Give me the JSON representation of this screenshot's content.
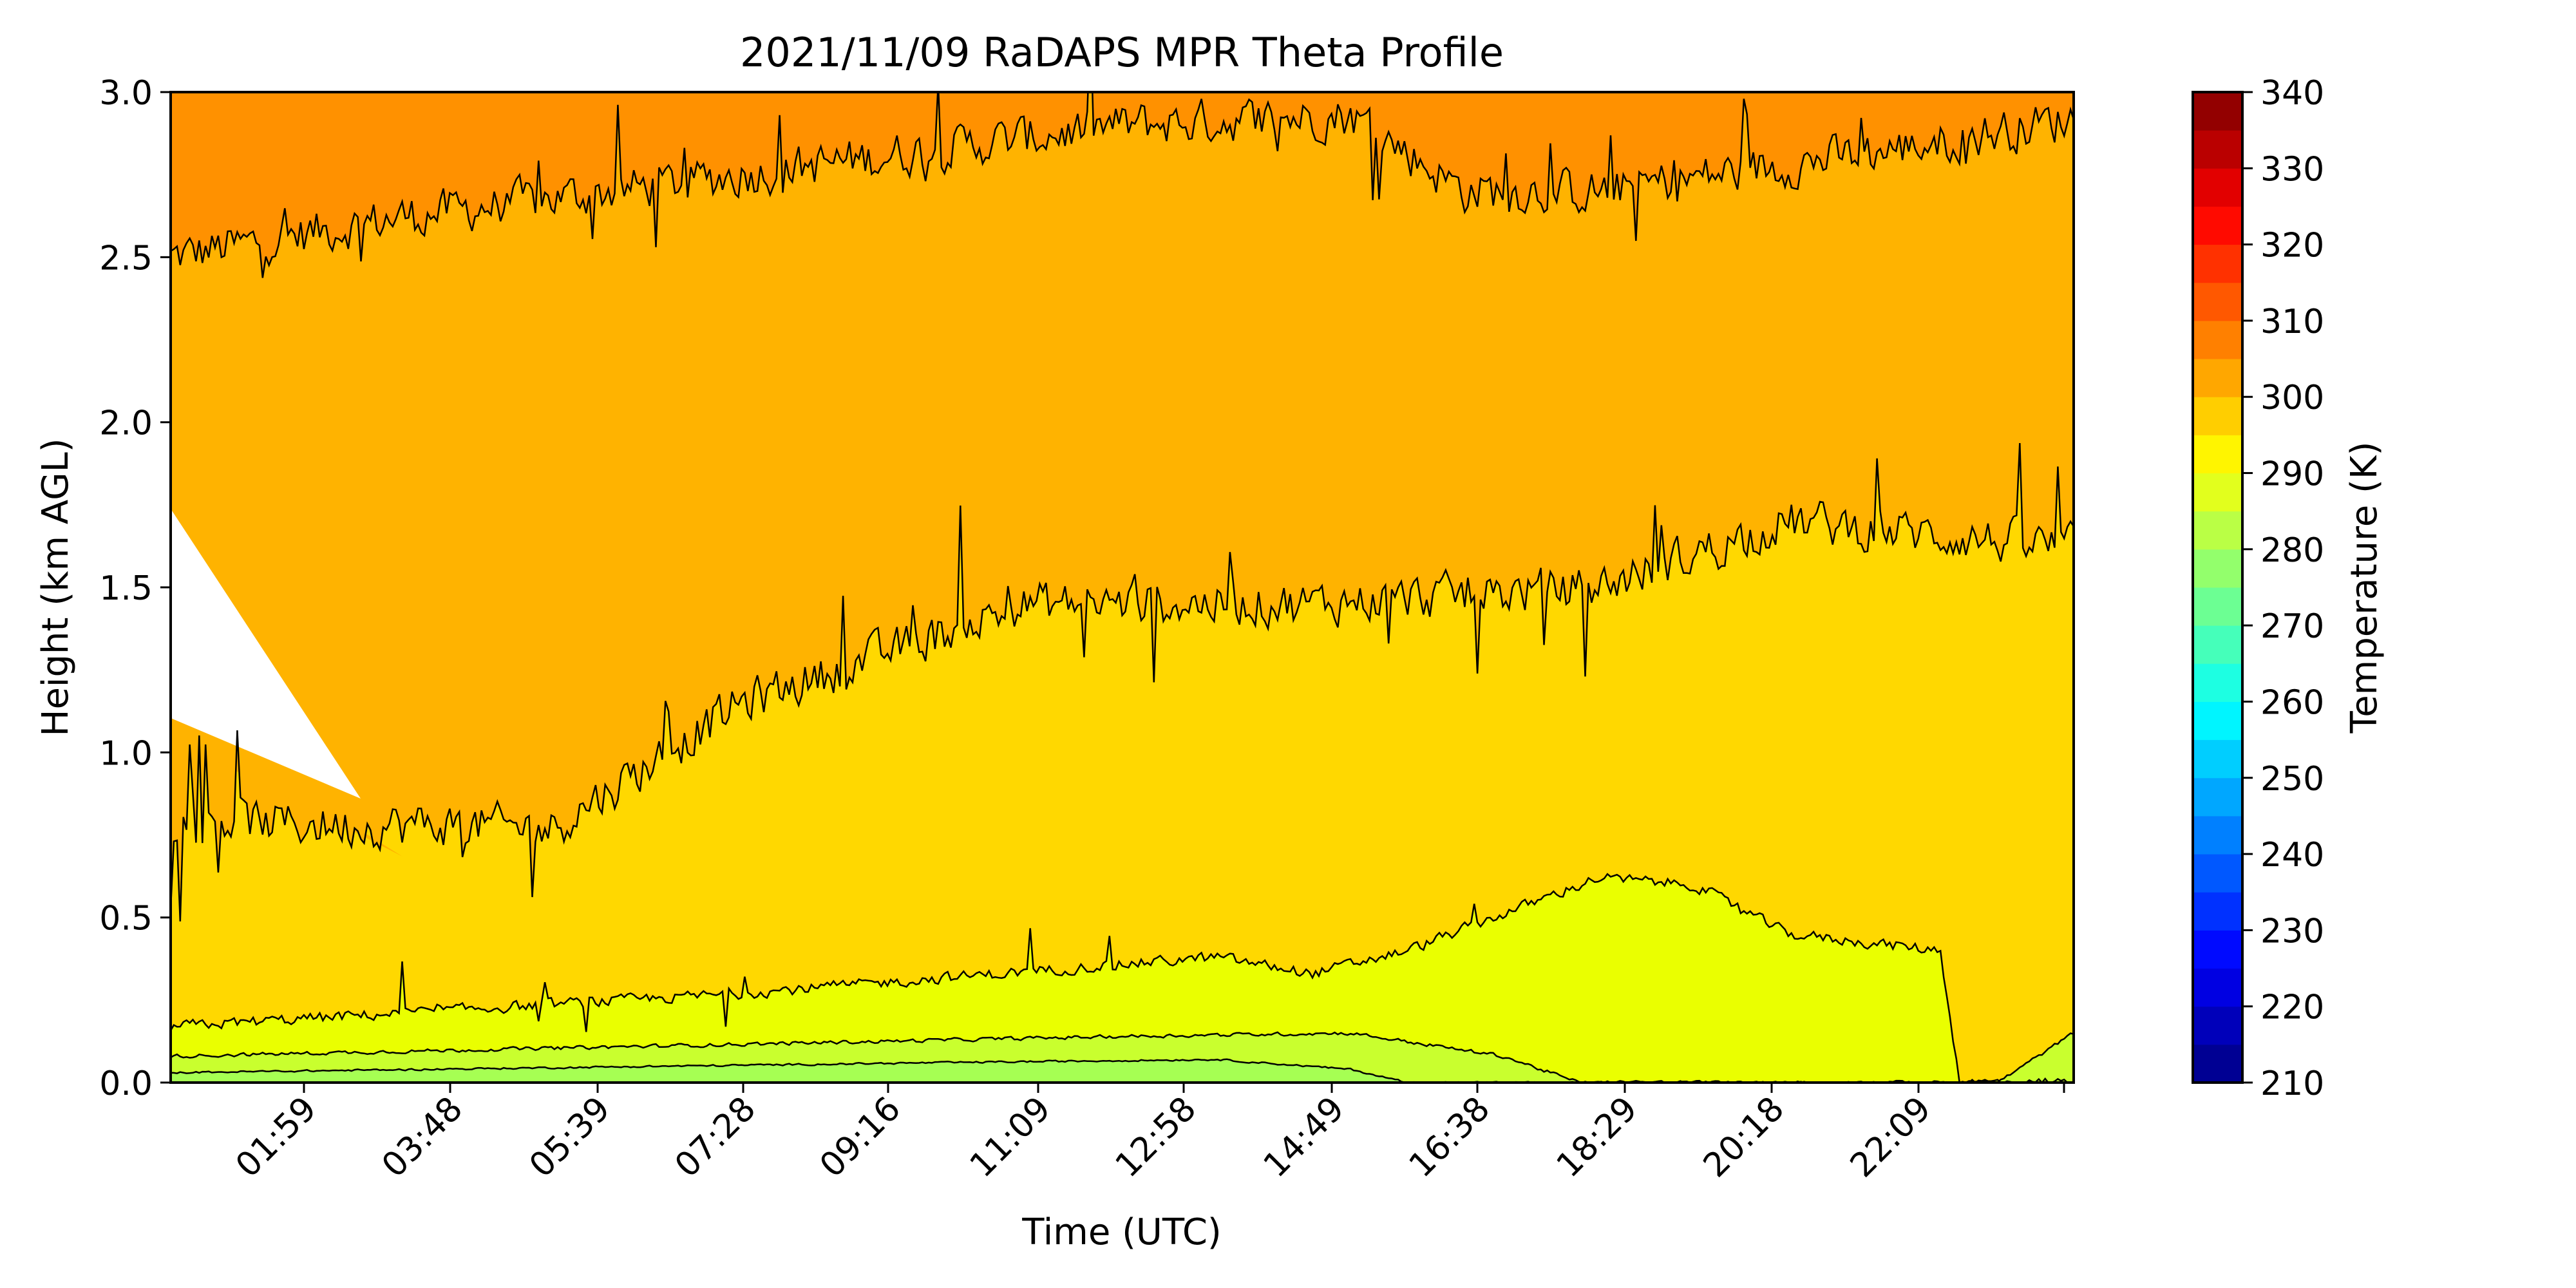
{
  "chart_data": {
    "type": "contourf",
    "title": "2021/11/09 RaDAPS MPR Theta Profile",
    "xlabel": "Time (UTC)",
    "ylabel": "Height (km AGL)",
    "x_ticks": [
      "01:59",
      "03:48",
      "05:39",
      "07:28",
      "09:16",
      "11:09",
      "12:58",
      "14:49",
      "16:38",
      "18:29",
      "20:18",
      "22:09"
    ],
    "y_ticks": [
      "0.0",
      "0.5",
      "1.0",
      "1.5",
      "2.0",
      "2.5",
      "3.0"
    ],
    "ylim": [
      0,
      3.0
    ],
    "colorbar": {
      "label": "Temperature (K)",
      "ticks": [
        "210",
        "220",
        "230",
        "240",
        "250",
        "260",
        "270",
        "280",
        "290",
        "300",
        "310",
        "320",
        "330",
        "340"
      ],
      "range": [
        210,
        340
      ],
      "colormap": "jet"
    },
    "regions": [
      {
        "range_K": [
          305,
          310
        ],
        "color": "#ff9100",
        "height_km": [
          2.55,
          3.0
        ]
      },
      {
        "range_K": [
          300,
          305
        ],
        "color": "#ffb300",
        "height_km": [
          1.45,
          2.7
        ]
      },
      {
        "range_K": [
          295,
          300
        ],
        "color": "#ffd800",
        "height_km": [
          0.3,
          1.55
        ]
      },
      {
        "range_K": [
          290,
          295
        ],
        "color": "#eaff00",
        "height_km": [
          0.1,
          0.6
        ]
      },
      {
        "range_K": [
          285,
          290
        ],
        "color": "#c9ff2e",
        "height_km": [
          0.03,
          0.12
        ]
      },
      {
        "range_K": [
          280,
          285
        ],
        "color": "#a6ff53",
        "height_km": [
          0.0,
          0.05
        ]
      }
    ],
    "missing_data": "white wedge 00:30–03:00 UTC, 0.8–1.7 km",
    "contour_line_color": "#000000",
    "grid": false
  }
}
